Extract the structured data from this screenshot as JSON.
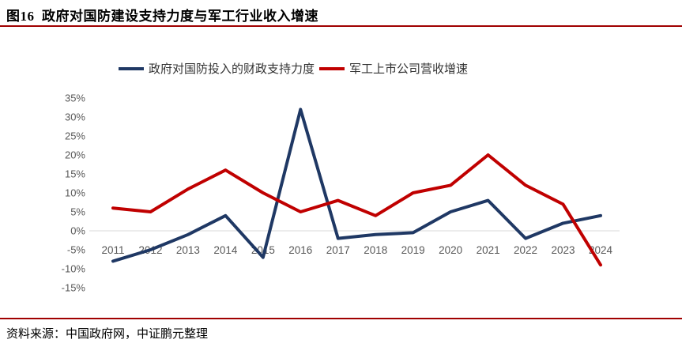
{
  "header": {
    "title": "图16  政府对国防建设支持力度与军工行业收入增速"
  },
  "footer": {
    "source": "资料来源：中国政府网，中证鹏元整理"
  },
  "colors": {
    "accent_rule": "#A00000",
    "series_fiscal": "#1F3864",
    "series_revenue": "#C00000",
    "gridline": "#D9D9D9",
    "axis_text": "#595959"
  },
  "chart_data": {
    "type": "line",
    "title": "",
    "xlabel": "",
    "ylabel": "",
    "categories": [
      "2011",
      "2012",
      "2013",
      "2014",
      "2015",
      "2016",
      "2017",
      "2018",
      "2019",
      "2020",
      "2021",
      "2022",
      "2023",
      "2024"
    ],
    "series": [
      {
        "name": "政府对国防投入的财政支持力度",
        "color": "#1F3864",
        "values": [
          -8,
          -5,
          -1,
          4,
          -7,
          32,
          -2,
          -1,
          -0.5,
          5,
          8,
          -2,
          2,
          4
        ]
      },
      {
        "name": "军工上市公司营收增速",
        "color": "#C00000",
        "values": [
          6,
          5,
          11,
          16,
          10,
          5,
          8,
          4,
          10,
          12,
          20,
          12,
          7,
          -9
        ]
      }
    ],
    "ylim": [
      -15,
      35
    ],
    "yticks": [
      35,
      30,
      25,
      20,
      15,
      10,
      5,
      0,
      -5,
      -10,
      -15
    ],
    "ytick_labels": [
      "35%",
      "30%",
      "25%",
      "20%",
      "15%",
      "10%",
      "5%",
      "0%",
      "-5%",
      "-10%",
      "-15%"
    ],
    "grid": "zero-line-only",
    "legend_position": "top"
  }
}
